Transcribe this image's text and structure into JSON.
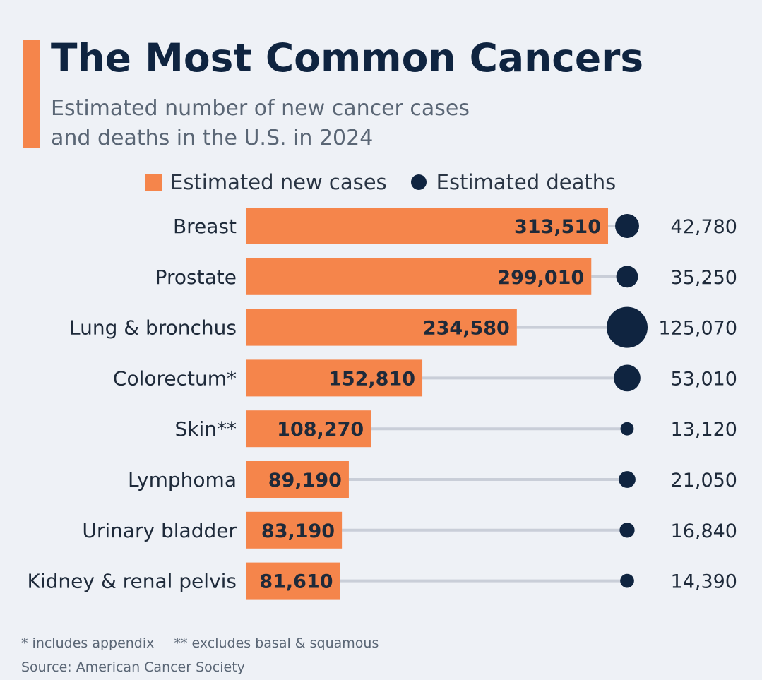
{
  "header": {
    "title": "The Most Common Cancers",
    "subtitle_line1": "Estimated number of new cancer cases",
    "subtitle_line2": "and deaths in the U.S. in 2024"
  },
  "legend": {
    "cases_label": "Estimated new cases",
    "deaths_label": "Estimated deaths"
  },
  "colors": {
    "accent": "#f5854b",
    "bar": "#f5854b",
    "dot": "#0f2440",
    "connector": "#c9ced8",
    "background": "#eef1f6"
  },
  "chart_data": {
    "type": "bar",
    "orientation": "horizontal",
    "title": "The Most Common Cancers",
    "subtitle": "Estimated number of new cancer cases and deaths in the U.S. in 2024",
    "categories": [
      "Breast",
      "Prostate",
      "Lung & bronchus",
      "Colorectum*",
      "Skin**",
      "Lymphoma",
      "Urinary bladder",
      "Kidney & renal pelvis"
    ],
    "series": [
      {
        "name": "Estimated new cases",
        "mark": "bar",
        "values": [
          313510,
          299010,
          234580,
          152810,
          108270,
          89190,
          83190,
          81610
        ],
        "labels": [
          "313,510",
          "299,010",
          "234,580",
          "152,810",
          "108,270",
          "89,190",
          "83,190",
          "81,610"
        ]
      },
      {
        "name": "Estimated deaths",
        "mark": "bubble",
        "values": [
          42780,
          35250,
          125070,
          53010,
          13120,
          21050,
          16840,
          14390
        ],
        "labels": [
          "42,780",
          "35,250",
          "125,070",
          "53,010",
          "13,120",
          "21,050",
          "16,840",
          "14,390"
        ]
      }
    ],
    "legend": "top",
    "grid": false
  },
  "footer": {
    "note1": "* includes appendix",
    "note2": "** excludes basal & squamous",
    "source": "Source: American Cancer Society"
  }
}
